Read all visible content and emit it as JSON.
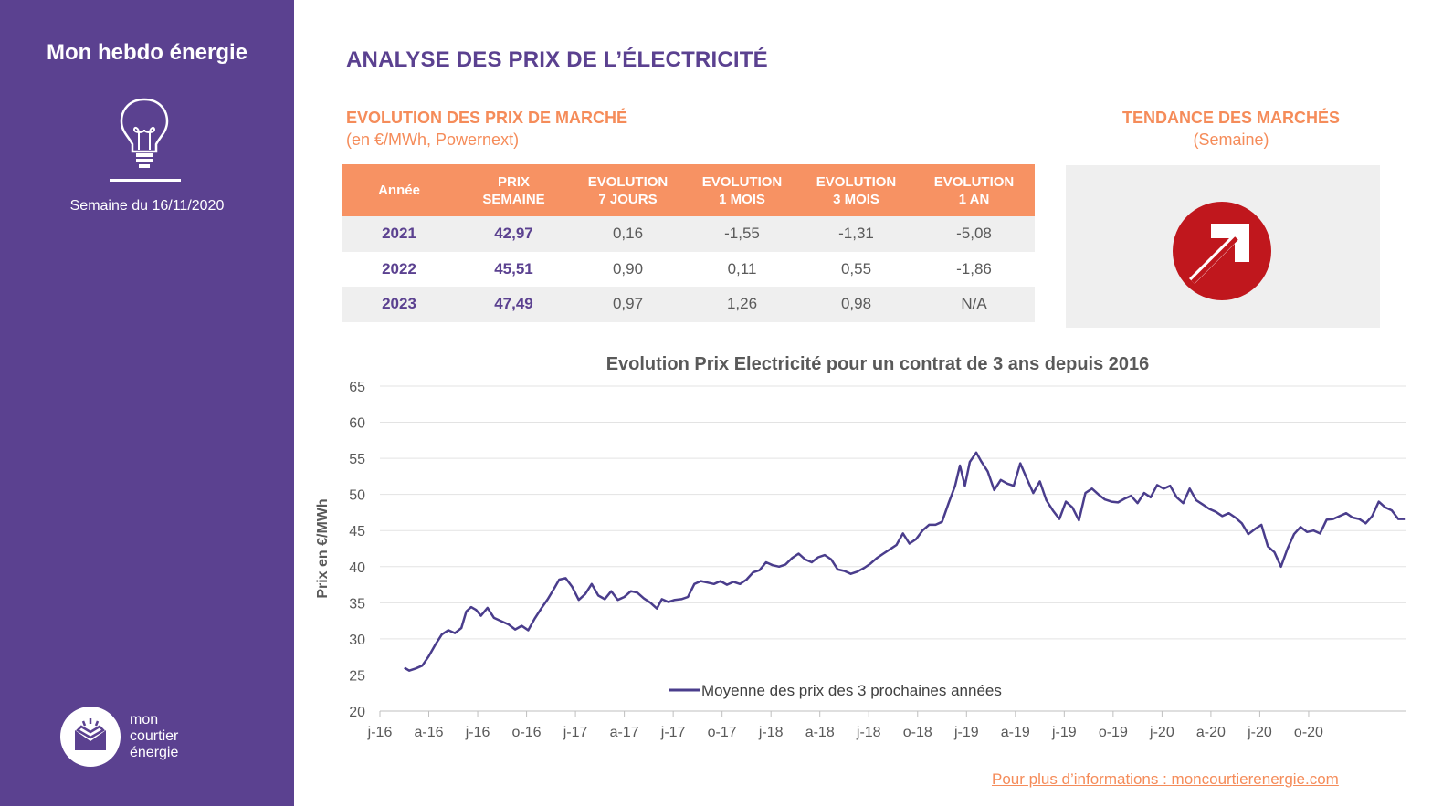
{
  "sidebar": {
    "title": "Mon hebdo énergie",
    "week_label": "Semaine du 16/11/2020",
    "logo_lines": [
      "mon",
      "courtier",
      "énergie"
    ]
  },
  "header": {
    "title": "ANALYSE DES PRIX DE L’ÉLECTRICITÉ"
  },
  "market": {
    "title": "EVOLUTION DES PRIX DE MARCHÉ",
    "subtitle": "(en €/MWh, Powernext)",
    "columns": [
      "Année",
      "PRIX SEMAINE",
      "EVOLUTION 7 JOURS",
      "EVOLUTION 1 MOIS",
      "EVOLUTION 3 MOIS",
      "EVOLUTION 1 AN"
    ],
    "rows": [
      [
        "2021",
        "42,97",
        "0,16",
        "-1,55",
        "-1,31",
        "-5,08"
      ],
      [
        "2022",
        "45,51",
        "0,90",
        "0,11",
        "0,55",
        "-1,86"
      ],
      [
        "2023",
        "47,49",
        "0,97",
        "1,26",
        "0,98",
        "N/A"
      ]
    ]
  },
  "trend": {
    "title": "TENDANCE DES MARCHÉS",
    "subtitle": "(Semaine)",
    "icon": "arrow-up-right-icon",
    "color": "#c0171d"
  },
  "colors": {
    "purple": "#5b4190",
    "orange": "#f58c5a",
    "line": "#4a3d8c"
  },
  "chart_data": {
    "type": "line",
    "title": "Evolution Prix Electricité pour un contrat de 3 ans depuis 2016",
    "ylabel": "Prix en €/MWh",
    "xlabel": "",
    "ylim": [
      20,
      65
    ],
    "yticks": [
      20,
      25,
      30,
      35,
      40,
      45,
      50,
      55,
      60,
      65
    ],
    "xtick_labels": [
      "j-16",
      "a-16",
      "j-16",
      "o-16",
      "j-17",
      "a-17",
      "j-17",
      "o-17",
      "j-18",
      "a-18",
      "j-18",
      "o-18",
      "j-19",
      "a-19",
      "j-19",
      "o-19",
      "j-20",
      "a-20",
      "j-20",
      "o-20"
    ],
    "grid": "horizontal",
    "legend_position": "bottom",
    "x_unit": "months since January 2016",
    "series": [
      {
        "name": "Moyenne des prix des 3 prochaines années",
        "points": [
          [
            1.5,
            26.0
          ],
          [
            1.8,
            25.6
          ],
          [
            2.2,
            25.9
          ],
          [
            2.6,
            26.3
          ],
          [
            3.0,
            27.6
          ],
          [
            3.4,
            29.2
          ],
          [
            3.8,
            30.6
          ],
          [
            4.2,
            31.2
          ],
          [
            4.6,
            30.8
          ],
          [
            5.0,
            31.5
          ],
          [
            5.3,
            33.8
          ],
          [
            5.6,
            34.4
          ],
          [
            5.9,
            34.0
          ],
          [
            6.2,
            33.2
          ],
          [
            6.6,
            34.3
          ],
          [
            7.0,
            32.9
          ],
          [
            7.4,
            32.5
          ],
          [
            7.9,
            32.0
          ],
          [
            8.3,
            31.3
          ],
          [
            8.7,
            31.8
          ],
          [
            9.1,
            31.2
          ],
          [
            9.5,
            32.8
          ],
          [
            9.9,
            34.2
          ],
          [
            10.3,
            35.5
          ],
          [
            10.7,
            37.0
          ],
          [
            11.0,
            38.2
          ],
          [
            11.4,
            38.4
          ],
          [
            11.8,
            37.2
          ],
          [
            12.2,
            35.4
          ],
          [
            12.6,
            36.2
          ],
          [
            13.0,
            37.6
          ],
          [
            13.4,
            36.0
          ],
          [
            13.8,
            35.5
          ],
          [
            14.2,
            36.6
          ],
          [
            14.6,
            35.4
          ],
          [
            15.0,
            35.8
          ],
          [
            15.4,
            36.6
          ],
          [
            15.8,
            36.4
          ],
          [
            16.2,
            35.6
          ],
          [
            16.6,
            35.0
          ],
          [
            17.0,
            34.2
          ],
          [
            17.3,
            35.5
          ],
          [
            17.7,
            35.1
          ],
          [
            18.1,
            35.4
          ],
          [
            18.5,
            35.5
          ],
          [
            18.9,
            35.8
          ],
          [
            19.3,
            37.6
          ],
          [
            19.7,
            38.0
          ],
          [
            20.1,
            37.8
          ],
          [
            20.5,
            37.6
          ],
          [
            20.9,
            38.0
          ],
          [
            21.3,
            37.5
          ],
          [
            21.7,
            37.9
          ],
          [
            22.1,
            37.6
          ],
          [
            22.5,
            38.2
          ],
          [
            22.9,
            39.2
          ],
          [
            23.3,
            39.5
          ],
          [
            23.7,
            40.6
          ],
          [
            24.1,
            40.2
          ],
          [
            24.5,
            40.0
          ],
          [
            24.9,
            40.3
          ],
          [
            25.3,
            41.2
          ],
          [
            25.7,
            41.8
          ],
          [
            26.1,
            41.0
          ],
          [
            26.5,
            40.6
          ],
          [
            26.9,
            41.3
          ],
          [
            27.3,
            41.6
          ],
          [
            27.7,
            41.0
          ],
          [
            28.1,
            39.6
          ],
          [
            28.5,
            39.4
          ],
          [
            28.9,
            39.0
          ],
          [
            29.3,
            39.3
          ],
          [
            29.7,
            39.8
          ],
          [
            30.1,
            40.4
          ],
          [
            30.5,
            41.2
          ],
          [
            30.9,
            41.8
          ],
          [
            31.3,
            42.4
          ],
          [
            31.7,
            43.0
          ],
          [
            32.1,
            44.6
          ],
          [
            32.5,
            43.2
          ],
          [
            32.9,
            43.8
          ],
          [
            33.3,
            45.0
          ],
          [
            33.7,
            45.8
          ],
          [
            34.1,
            45.8
          ],
          [
            34.5,
            46.2
          ],
          [
            34.9,
            48.8
          ],
          [
            35.3,
            51.2
          ],
          [
            35.6,
            54.0
          ],
          [
            35.9,
            51.2
          ],
          [
            36.2,
            54.5
          ],
          [
            36.6,
            55.8
          ],
          [
            36.9,
            54.6
          ],
          [
            37.3,
            53.2
          ],
          [
            37.7,
            50.6
          ],
          [
            38.1,
            52.0
          ],
          [
            38.5,
            51.5
          ],
          [
            38.9,
            51.2
          ],
          [
            39.3,
            54.3
          ],
          [
            39.7,
            52.2
          ],
          [
            40.1,
            50.2
          ],
          [
            40.5,
            51.8
          ],
          [
            40.9,
            49.2
          ],
          [
            41.3,
            47.8
          ],
          [
            41.7,
            46.6
          ],
          [
            42.1,
            49.0
          ],
          [
            42.5,
            48.2
          ],
          [
            42.9,
            46.4
          ],
          [
            43.3,
            50.2
          ],
          [
            43.7,
            50.8
          ],
          [
            44.1,
            50.0
          ],
          [
            44.5,
            49.3
          ],
          [
            44.9,
            49.0
          ],
          [
            45.3,
            48.9
          ],
          [
            45.7,
            49.4
          ],
          [
            46.1,
            49.8
          ],
          [
            46.5,
            48.8
          ],
          [
            46.9,
            50.2
          ],
          [
            47.3,
            49.6
          ],
          [
            47.7,
            51.3
          ],
          [
            48.1,
            50.8
          ],
          [
            48.5,
            51.2
          ],
          [
            48.9,
            49.6
          ],
          [
            49.3,
            48.8
          ],
          [
            49.7,
            50.8
          ],
          [
            50.1,
            49.2
          ],
          [
            50.5,
            48.6
          ],
          [
            50.9,
            48.0
          ],
          [
            51.3,
            47.6
          ],
          [
            51.7,
            47.0
          ],
          [
            52.1,
            47.4
          ],
          [
            52.5,
            46.8
          ],
          [
            52.9,
            46.0
          ],
          [
            53.3,
            44.5
          ],
          [
            53.7,
            45.2
          ],
          [
            54.1,
            45.8
          ],
          [
            54.5,
            42.8
          ],
          [
            54.9,
            42.0
          ],
          [
            55.3,
            40.0
          ],
          [
            55.7,
            42.5
          ],
          [
            56.1,
            44.5
          ],
          [
            56.5,
            45.5
          ],
          [
            56.9,
            44.8
          ],
          [
            57.3,
            45.0
          ],
          [
            57.7,
            44.6
          ],
          [
            58.1,
            46.5
          ],
          [
            58.5,
            46.6
          ],
          [
            58.9,
            47.0
          ],
          [
            59.3,
            47.4
          ],
          [
            59.7,
            46.8
          ],
          [
            60.1,
            46.6
          ],
          [
            60.5,
            46.0
          ],
          [
            60.9,
            47.0
          ],
          [
            61.3,
            49.0
          ],
          [
            61.7,
            48.2
          ],
          [
            62.1,
            47.8
          ],
          [
            62.5,
            46.6
          ],
          [
            62.9,
            46.6
          ]
        ]
      }
    ]
  },
  "footer": {
    "link_text": "Pour plus d’informations : moncourtierenergie.com"
  }
}
